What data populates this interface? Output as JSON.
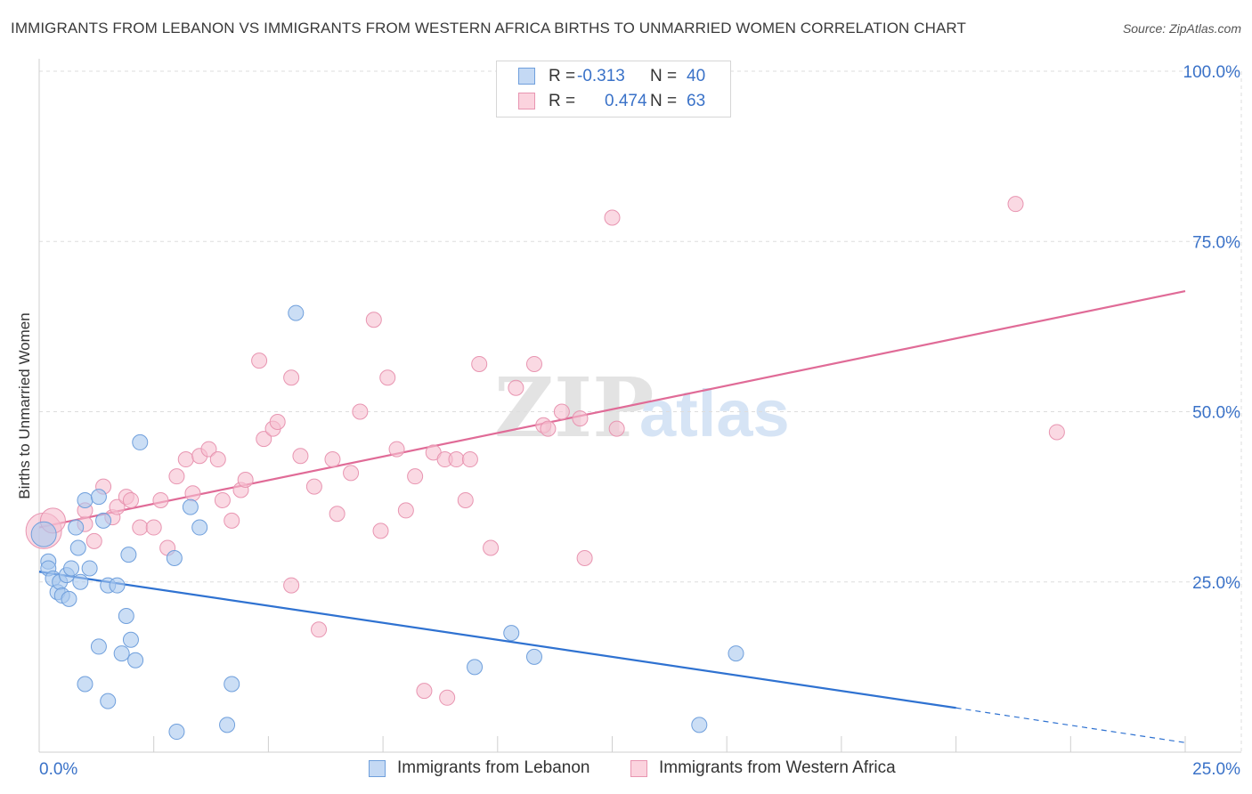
{
  "title": "IMMIGRANTS FROM LEBANON VS IMMIGRANTS FROM WESTERN AFRICA BIRTHS TO UNMARRIED WOMEN CORRELATION CHART",
  "source": "Source: ZipAtlas.com",
  "watermark": {
    "part1": "ZIP",
    "part2": "atlas"
  },
  "colors": {
    "blue_fill": "#a9c8ef",
    "blue_stroke": "#6f9fdc",
    "blue_line": "#2f72d1",
    "pink_fill": "#f6c0d0",
    "pink_stroke": "#e895b1",
    "pink_line": "#e06b97",
    "tick_label": "#3a72c8",
    "grid": "#dddddd"
  },
  "legend_top": [
    {
      "r_label": "R =",
      "r_value": "-0.313",
      "n_label": "N =",
      "n_value": "40"
    },
    {
      "r_label": "R =",
      "r_value": "0.474",
      "n_label": "N =",
      "n_value": "63"
    }
  ],
  "legend_bottom": [
    "Immigrants from Lebanon",
    "Immigrants from Western Africa"
  ],
  "chart_data": {
    "type": "scatter",
    "title": "IMMIGRANTS FROM LEBANON VS IMMIGRANTS FROM WESTERN AFRICA BIRTHS TO UNMARRIED WOMEN CORRELATION CHART",
    "xlabel": "",
    "ylabel": "Births to Unmarried Women",
    "xlim": [
      0,
      25
    ],
    "ylim": [
      0,
      100
    ],
    "x_tick_labels": [
      "0.0%",
      "25.0%"
    ],
    "y_ticks": [
      25,
      50,
      75,
      100
    ],
    "y_tick_labels": [
      "25.0%",
      "50.0%",
      "75.0%",
      "100.0%"
    ],
    "grid": "horizontal dashed",
    "legend_position": "top-center and bottom",
    "series": [
      {
        "name": "Immigrants from Lebanon",
        "color": "blue",
        "r": -0.313,
        "n": 40,
        "trend": {
          "x": [
            0,
            20
          ],
          "y": [
            26.5,
            6.5
          ],
          "dashed_to": [
            25,
            1.4
          ]
        },
        "points": [
          [
            0.1,
            32,
            1
          ],
          [
            0.2,
            28,
            0
          ],
          [
            0.2,
            27,
            0
          ],
          [
            0.3,
            25.5,
            0
          ],
          [
            0.4,
            23.5,
            0
          ],
          [
            0.45,
            25,
            0
          ],
          [
            0.5,
            23,
            0
          ],
          [
            0.6,
            26,
            0
          ],
          [
            0.65,
            22.5,
            0
          ],
          [
            0.7,
            27,
            0
          ],
          [
            0.8,
            33,
            0
          ],
          [
            0.85,
            30,
            0
          ],
          [
            0.9,
            25,
            0
          ],
          [
            1.0,
            37,
            0
          ],
          [
            1.0,
            10,
            0
          ],
          [
            1.1,
            27,
            0
          ],
          [
            1.3,
            37.5,
            0
          ],
          [
            1.3,
            15.5,
            0
          ],
          [
            1.4,
            34,
            0
          ],
          [
            1.5,
            24.5,
            0
          ],
          [
            1.5,
            7.5,
            0
          ],
          [
            1.7,
            24.5,
            0
          ],
          [
            1.8,
            14.5,
            0
          ],
          [
            1.9,
            20,
            0
          ],
          [
            1.95,
            29,
            0
          ],
          [
            2.0,
            16.5,
            0
          ],
          [
            2.1,
            13.5,
            0
          ],
          [
            2.2,
            45.5,
            0
          ],
          [
            2.95,
            28.5,
            0
          ],
          [
            3.0,
            3,
            0
          ],
          [
            3.3,
            36,
            0
          ],
          [
            3.5,
            33,
            0
          ],
          [
            4.1,
            4,
            0
          ],
          [
            4.2,
            10,
            0
          ],
          [
            5.6,
            64.5,
            0
          ],
          [
            9.5,
            12.5,
            0
          ],
          [
            10.3,
            17.5,
            0
          ],
          [
            10.8,
            14,
            0
          ],
          [
            14.4,
            4,
            0
          ],
          [
            15.2,
            14.5,
            0
          ]
        ]
      },
      {
        "name": "Immigrants from Western Africa",
        "color": "pink",
        "r": 0.474,
        "n": 63,
        "trend": {
          "x": [
            0,
            25
          ],
          "y": [
            33,
            67.7
          ]
        },
        "points": [
          [
            0.1,
            32.5,
            2
          ],
          [
            0.3,
            34,
            1
          ],
          [
            1.0,
            33.5,
            0
          ],
          [
            1.0,
            35.5,
            0
          ],
          [
            1.2,
            31,
            0
          ],
          [
            1.4,
            39,
            0
          ],
          [
            1.6,
            34.5,
            0
          ],
          [
            1.7,
            36,
            0
          ],
          [
            1.9,
            37.5,
            0
          ],
          [
            2.0,
            37,
            0
          ],
          [
            2.2,
            33,
            0
          ],
          [
            2.5,
            33,
            0
          ],
          [
            2.65,
            37,
            0
          ],
          [
            2.8,
            30,
            0
          ],
          [
            3.0,
            40.5,
            0
          ],
          [
            3.2,
            43,
            0
          ],
          [
            3.35,
            38,
            0
          ],
          [
            3.5,
            43.5,
            0
          ],
          [
            3.7,
            44.5,
            0
          ],
          [
            3.9,
            43,
            0
          ],
          [
            4.0,
            37,
            0
          ],
          [
            4.2,
            34,
            0
          ],
          [
            4.4,
            38.5,
            0
          ],
          [
            4.5,
            40,
            0
          ],
          [
            4.8,
            57.5,
            0
          ],
          [
            4.9,
            46,
            0
          ],
          [
            5.1,
            47.5,
            0
          ],
          [
            5.2,
            48.5,
            0
          ],
          [
            5.5,
            24.5,
            0
          ],
          [
            5.5,
            55,
            0
          ],
          [
            5.7,
            43.5,
            0
          ],
          [
            6.0,
            39,
            0
          ],
          [
            6.1,
            18,
            0
          ],
          [
            6.4,
            43,
            0
          ],
          [
            6.5,
            35,
            0
          ],
          [
            6.8,
            41,
            0
          ],
          [
            7.0,
            50,
            0
          ],
          [
            7.3,
            63.5,
            0
          ],
          [
            7.45,
            32.5,
            0
          ],
          [
            7.6,
            55,
            0
          ],
          [
            7.8,
            44.5,
            0
          ],
          [
            8.0,
            35.5,
            0
          ],
          [
            8.2,
            40.5,
            0
          ],
          [
            8.4,
            9,
            0
          ],
          [
            8.6,
            44,
            0
          ],
          [
            8.85,
            43,
            0
          ],
          [
            8.9,
            8,
            0
          ],
          [
            9.1,
            43,
            0
          ],
          [
            9.3,
            37,
            0
          ],
          [
            9.4,
            43,
            0
          ],
          [
            9.6,
            57,
            0
          ],
          [
            9.85,
            30,
            0
          ],
          [
            10.4,
            53.5,
            0
          ],
          [
            10.8,
            57,
            0
          ],
          [
            11.0,
            48,
            0
          ],
          [
            11.1,
            47.5,
            0
          ],
          [
            11.4,
            50,
            0
          ],
          [
            11.8,
            49,
            0
          ],
          [
            11.9,
            28.5,
            0
          ],
          [
            12.5,
            78.5,
            0
          ],
          [
            12.6,
            47.5,
            0
          ],
          [
            21.3,
            80.5,
            0
          ],
          [
            22.2,
            47,
            0
          ]
        ]
      }
    ]
  }
}
